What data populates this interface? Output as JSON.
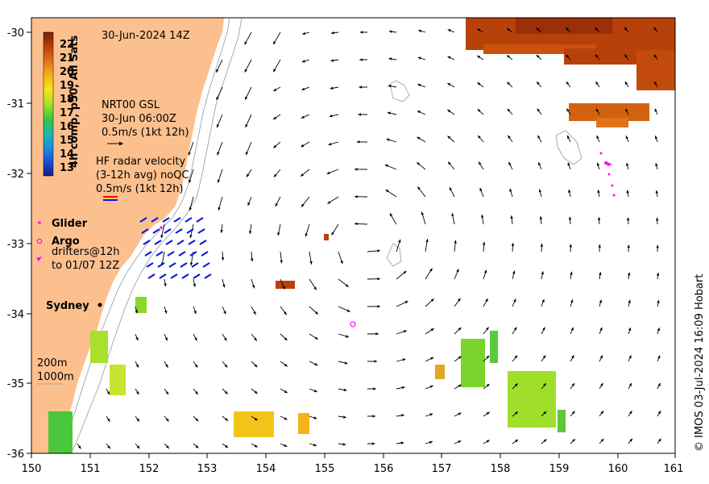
{
  "map": {
    "date_label": "30-Jun-2024 14Z",
    "colorbar": {
      "title": "4h comp, p50, All Sats",
      "ticks": [
        "22",
        "21",
        "20",
        "19",
        "18",
        "17",
        "16",
        "15",
        "14",
        "13"
      ],
      "colors": [
        "#7a1f05",
        "#b8410a",
        "#e0731a",
        "#f3b21a",
        "#f8e61e",
        "#a8e02a",
        "#3cc63a",
        "#1fb9a8",
        "#1e8fe0",
        "#1c4fd4",
        "#141e8a"
      ]
    },
    "gsl": {
      "line1": "NRT00 GSL",
      "line2": "30-Jun 06:00Z",
      "line3": "0.5m/s (1kt 12h)"
    },
    "hf_radar": {
      "line1": "HF radar velocity",
      "line2": "(3-12h avg) noQC",
      "line3": "0.5m/s (1kt 12h)"
    },
    "legend": {
      "glider": "Glider",
      "argo": "Argo",
      "drifters_line1": "drifters@12h",
      "drifters_line2": "to 01/07 12Z"
    },
    "city": "Sydney",
    "isobaths": {
      "line1": "200m",
      "line2": "1000m"
    },
    "credit": "© IMOS 03-Jul-2024 16:09 Hobart",
    "x_ticks": [
      "150",
      "151",
      "152",
      "153",
      "154",
      "155",
      "156",
      "157",
      "158",
      "159",
      "160",
      "161"
    ],
    "y_ticks": [
      "-30",
      "-31",
      "-32",
      "-33",
      "-34",
      "-35",
      "-36"
    ],
    "colors": {
      "land": "#fcc08e",
      "arrow": "#000000",
      "radar": "#0a18d8",
      "drifter": "#ff00ff"
    }
  }
}
